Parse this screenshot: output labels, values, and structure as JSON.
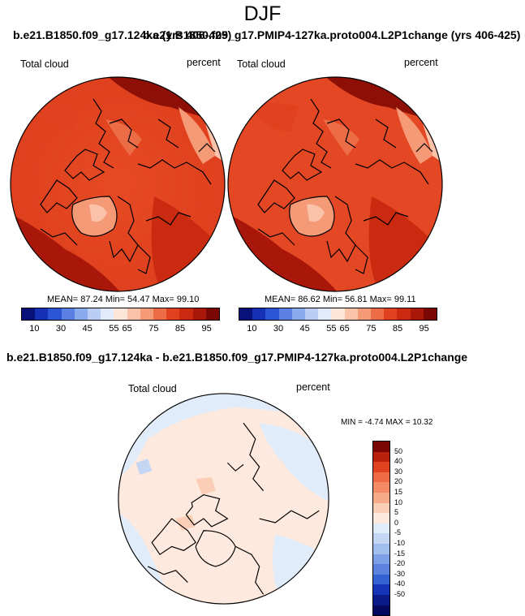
{
  "title": "DJF",
  "panel1": {
    "run_title": "b.e21.B1850.f09_g17.124ka (yrs 406-425)",
    "left_label": "Total cloud",
    "right_label": "percent",
    "stats": "MEAN=  87.24  Min=  54.47  Max=  99.10"
  },
  "panel2": {
    "run_title": "b.e21.B1850.f09_g17.PMIP4-127ka.proto004.L2P1change (yrs 406-425)",
    "left_label": "Total cloud",
    "right_label": "percent",
    "stats": "MEAN=  86.62  Min=  56.81  Max=  99.11"
  },
  "diff": {
    "title": "b.e21.B1850.f09_g17.124ka - b.e21.B1850.f09_g17.PMIP4-127ka.proto004.L2P1change",
    "left_label": "Total cloud",
    "right_label": "percent",
    "minmax": "MIN = -4.74 MAX = 10.32"
  },
  "colorbar_abs": {
    "colors": [
      "#08107a",
      "#1530b5",
      "#2c55d6",
      "#5a80e3",
      "#8aaaee",
      "#b9cdf5",
      "#e2ebfb",
      "#fde6d8",
      "#fac2a8",
      "#f49a76",
      "#ec6c45",
      "#e0421f",
      "#c92a10",
      "#a8170a",
      "#7a0703"
    ],
    "labels": [
      "10",
      "30",
      "45",
      "55",
      "65",
      "75",
      "85",
      "95"
    ]
  },
  "colorbar_diff": {
    "colors": [
      "#7a0703",
      "#b8210c",
      "#e0421f",
      "#ee6b45",
      "#f48b65",
      "#f7ab88",
      "#fbcfb7",
      "#fde9dd",
      "#e1ecfa",
      "#c3d6f4",
      "#a2beee",
      "#7c9fe6",
      "#5b82dd",
      "#3462d2",
      "#1535b8",
      "#0b1a8a",
      "#04085e"
    ],
    "labels": [
      "50",
      "40",
      "30",
      "20",
      "15",
      "10",
      "5",
      "0",
      "-5",
      "-10",
      "-15",
      "-20",
      "-30",
      "-40",
      "-50"
    ]
  }
}
